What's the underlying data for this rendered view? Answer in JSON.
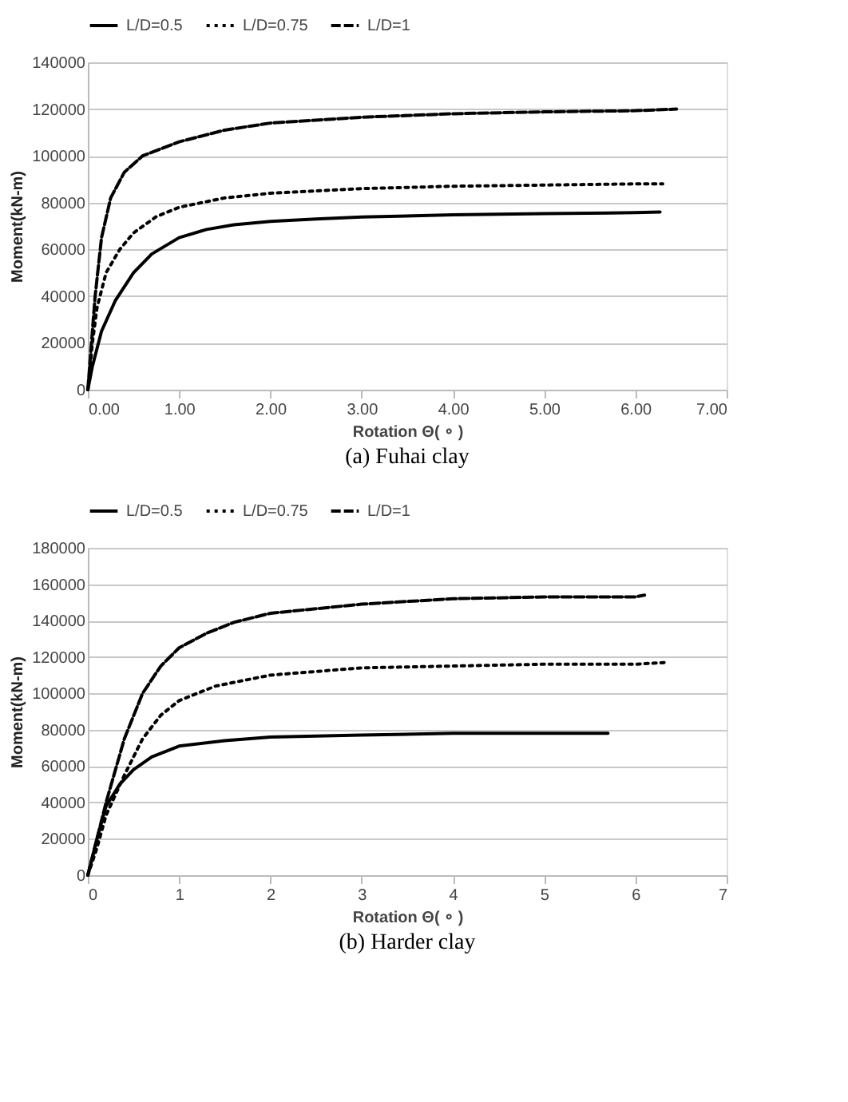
{
  "chart_data": [
    {
      "type": "line",
      "title": "(a) Fuhai clay",
      "xlabel": "Rotation Θ( ∘ )",
      "ylabel": "Moment(kN-m)",
      "xlim": [
        0,
        7
      ],
      "ylim": [
        0,
        140000
      ],
      "xticks": [
        {
          "value": 0,
          "label": "0.00"
        },
        {
          "value": 1,
          "label": "1.00"
        },
        {
          "value": 2,
          "label": "2.00"
        },
        {
          "value": 3,
          "label": "3.00"
        },
        {
          "value": 4,
          "label": "4.00"
        },
        {
          "value": 5,
          "label": "5.00"
        },
        {
          "value": 6,
          "label": "6.00"
        },
        {
          "value": 7,
          "label": "7.00"
        }
      ],
      "yticks": [
        0,
        20000,
        40000,
        60000,
        80000,
        100000,
        120000,
        140000
      ],
      "grid": "y",
      "legend": "top",
      "marker": "none",
      "series": [
        {
          "name": "L/D=0.5",
          "color": "#000000",
          "line_style": "solid",
          "x": [
            0,
            0.05,
            0.15,
            0.3,
            0.5,
            0.7,
            1.0,
            1.3,
            1.6,
            2.0,
            2.5,
            3.0,
            4.0,
            5.0,
            6.0,
            6.27
          ],
          "values": [
            0,
            10000,
            25000,
            38000,
            50000,
            58000,
            65000,
            68500,
            70500,
            72000,
            73000,
            73800,
            74800,
            75300,
            75700,
            76000
          ]
        },
        {
          "name": "L/D=0.75",
          "color": "#000000",
          "line_style": "dotted",
          "x": [
            0,
            0.05,
            0.1,
            0.2,
            0.35,
            0.5,
            0.75,
            1.0,
            1.5,
            2.0,
            3.0,
            4.0,
            5.0,
            6.0,
            6.3
          ],
          "values": [
            0,
            20000,
            35000,
            50000,
            60000,
            67000,
            74000,
            78000,
            82000,
            84000,
            86000,
            87000,
            87500,
            88000,
            88000
          ]
        },
        {
          "name": "L/D=1",
          "color": "#000000",
          "line_style": "dashed",
          "x": [
            0,
            0.03,
            0.08,
            0.15,
            0.25,
            0.4,
            0.6,
            1.0,
            1.5,
            2.0,
            3.0,
            4.0,
            5.0,
            6.0,
            6.45
          ],
          "values": [
            0,
            15000,
            40000,
            65000,
            82000,
            93000,
            100000,
            106000,
            111000,
            114000,
            116500,
            118000,
            118800,
            119300,
            120000
          ]
        }
      ]
    },
    {
      "type": "line",
      "title": "(b) Harder clay",
      "xlabel": "Rotation Θ( ∘ )",
      "ylabel": "Moment(kN-m)",
      "xlim": [
        0,
        7
      ],
      "ylim": [
        0,
        180000
      ],
      "xticks": [
        0,
        1,
        2,
        3,
        4,
        5,
        6,
        7
      ],
      "yticks": [
        0,
        20000,
        40000,
        60000,
        80000,
        100000,
        120000,
        140000,
        160000,
        180000
      ],
      "grid": "y",
      "legend": "top",
      "marker": "none",
      "series": [
        {
          "name": "L/D=0.5",
          "color": "#000000",
          "line_style": "solid",
          "x": [
            0,
            0.1,
            0.2,
            0.35,
            0.5,
            0.7,
            1.0,
            1.5,
            2.0,
            3.0,
            4.0,
            5.0,
            5.7
          ],
          "values": [
            0,
            20000,
            38000,
            50000,
            58000,
            65000,
            71000,
            74000,
            76000,
            77000,
            78000,
            78000,
            78000
          ]
        },
        {
          "name": "L/D=0.75",
          "color": "#000000",
          "line_style": "dotted",
          "x": [
            0,
            0.1,
            0.2,
            0.4,
            0.6,
            0.8,
            1.0,
            1.4,
            2.0,
            3.0,
            4.0,
            5.0,
            6.0,
            6.35
          ],
          "values": [
            0,
            15000,
            33000,
            55000,
            75000,
            88000,
            96000,
            104000,
            110000,
            114000,
            115000,
            116000,
            116000,
            117000
          ]
        },
        {
          "name": "L/D=1",
          "color": "#000000",
          "line_style": "dashed",
          "x": [
            0,
            0.1,
            0.2,
            0.4,
            0.6,
            0.8,
            1.0,
            1.3,
            1.6,
            2.0,
            3.0,
            4.0,
            5.0,
            6.0,
            6.1
          ],
          "values": [
            0,
            20000,
            40000,
            75000,
            100000,
            115000,
            125000,
            133000,
            139000,
            144000,
            149000,
            152000,
            153000,
            153000,
            154000
          ]
        }
      ]
    }
  ]
}
